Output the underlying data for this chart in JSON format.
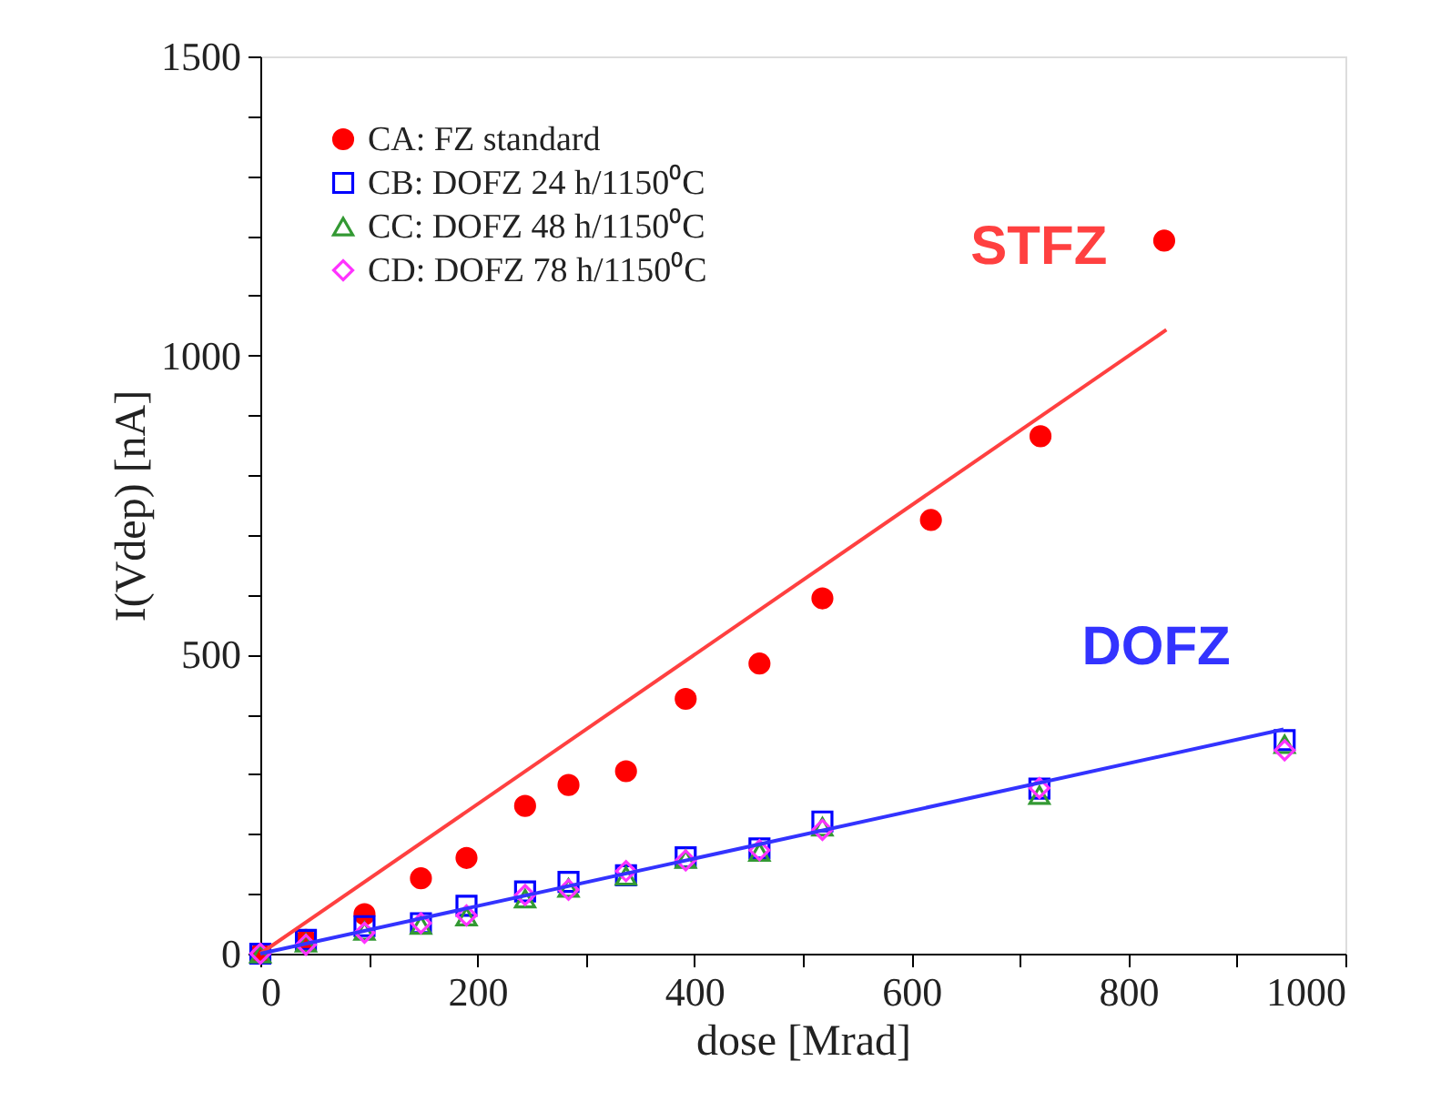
{
  "chart_data": {
    "type": "scatter",
    "xlabel": "dose [Mrad]",
    "ylabel": "I(Vdep) [nA]",
    "xlim": [
      0,
      1000
    ],
    "ylim": [
      0,
      1500
    ],
    "xticks": [
      0,
      {
        "value": 100,
        "label": null
      },
      200,
      {
        "value": 300,
        "label": null
      },
      400,
      {
        "value": 500,
        "label": null
      },
      600,
      {
        "value": 700,
        "label": null
      },
      800,
      {
        "value": 900,
        "label": null
      },
      1000
    ],
    "yticks": [
      0,
      {
        "value": 100,
        "label": null
      },
      {
        "value": 200,
        "label": null
      },
      {
        "value": 300,
        "label": null
      },
      {
        "value": 400,
        "label": null
      },
      500,
      {
        "value": 600,
        "label": null
      },
      {
        "value": 700,
        "label": null
      },
      {
        "value": 800,
        "label": null
      },
      {
        "value": 900,
        "label": null
      },
      1000,
      {
        "value": 1100,
        "label": null
      },
      {
        "value": 1200,
        "label": null
      },
      {
        "value": 1300,
        "label": null
      },
      {
        "value": 1400,
        "label": null
      },
      1500
    ],
    "grid": false,
    "legend": "top left",
    "series": [
      {
        "name": "CA: FZ standard",
        "color": "#ff0000",
        "marker": "circle",
        "x": [
          0,
          42,
          96,
          148,
          190,
          244,
          284,
          337,
          392,
          460,
          518,
          618,
          719,
          833
        ],
        "values": [
          0,
          23,
          66,
          126,
          160,
          247,
          282,
          305,
          426,
          485,
          594,
          725,
          865,
          1192
        ]
      },
      {
        "name": "CB: DOFZ 24 h/1150⁰C",
        "color": "#0000ff",
        "marker": "square",
        "x": [
          0,
          42,
          96,
          148,
          190,
          244,
          284,
          337,
          392,
          460,
          518,
          718,
          944
        ],
        "values": [
          0,
          23,
          46,
          51,
          80,
          104,
          120,
          131,
          161,
          176,
          221,
          276,
          357
        ]
      },
      {
        "name": "CC: DOFZ 48 h/1150⁰C",
        "color": "#339933",
        "marker": "triangle",
        "x": [
          0,
          42,
          96,
          148,
          190,
          244,
          284,
          337,
          392,
          460,
          518,
          718,
          944
        ],
        "values": [
          0,
          18,
          38,
          48,
          62,
          92,
          110,
          130,
          158,
          170,
          212,
          265,
          350
        ]
      },
      {
        "name": "CD: DOFZ 78 h/1150⁰C",
        "color": "#ff33ff",
        "marker": "diamond",
        "x": [
          0,
          42,
          96,
          148,
          190,
          244,
          284,
          337,
          392,
          460,
          518,
          718,
          944
        ],
        "values": [
          0,
          15,
          35,
          51,
          64,
          98,
          107,
          138,
          156,
          173,
          207,
          277,
          340
        ]
      },
      {
        "type": "line",
        "color": "#ff4040",
        "line_style": "solid",
        "x": [
          0,
          835
        ],
        "values": [
          0,
          1043
        ]
      },
      {
        "type": "line",
        "color": "#3333ff",
        "line_style": "solid",
        "x": [
          0,
          943
        ],
        "values": [
          0,
          375
        ]
      }
    ],
    "annotations": [
      "STFZ",
      "DOFZ"
    ]
  }
}
